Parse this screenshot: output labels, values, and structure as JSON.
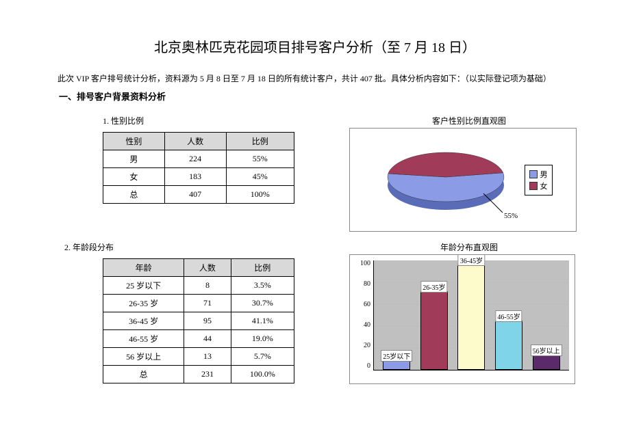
{
  "title": "北京奥林匹克花园项目排号客户分析（至 7 月 18 日）",
  "intro": "此次 VIP 客户排号统计分析，资料源为 5 月 8 日至 7 月 18 日的所有统计客户，共计 407 批。具体分析内容如下：（以实际登记项为基础）",
  "section1_heading": "一、排号客户背景资料分析",
  "gender": {
    "subheading": "1. 性别比例",
    "chart_title": "客户性别比例直观图",
    "columns": [
      "性别",
      "人数",
      "比例"
    ],
    "rows": [
      [
        "男",
        "224",
        "55%"
      ],
      [
        "女",
        "183",
        "45%"
      ],
      [
        "总",
        "407",
        "100%"
      ]
    ],
    "pie": {
      "slices": [
        {
          "label": "男",
          "value": 55,
          "color": "#8c9be6"
        },
        {
          "label": "女",
          "value": 45,
          "color": "#a13b5a"
        }
      ],
      "callout": "55%",
      "background": "#ffffff",
      "side_color": "#5a6bb8"
    }
  },
  "age": {
    "subheading": "2. 年龄段分布",
    "chart_title": "年龄分布直观图",
    "columns": [
      "年龄",
      "人数",
      "比例"
    ],
    "rows": [
      [
        "25 岁以下",
        "8",
        "3.5%"
      ],
      [
        "26-35 岁",
        "71",
        "30.7%"
      ],
      [
        "36-45 岁",
        "95",
        "41.1%"
      ],
      [
        "46-55 岁",
        "44",
        "19.0%"
      ],
      [
        "56 岁以上",
        "13",
        "5.7%"
      ],
      [
        "总",
        "231",
        "100.0%"
      ]
    ],
    "bar": {
      "ylim": [
        0,
        100
      ],
      "ytick_step": 20,
      "yticks": [
        "0",
        "20",
        "40",
        "60",
        "80",
        "100"
      ],
      "plot_bg": "#c0c0c0",
      "grid_color": "#bdbdbd",
      "bars": [
        {
          "label": "25岁以下",
          "value": 8,
          "color": "#8c9be6"
        },
        {
          "label": "26-35岁",
          "value": 71,
          "color": "#a13b5a"
        },
        {
          "label": "36-45岁",
          "value": 95,
          "color": "#fdfacb"
        },
        {
          "label": "46-55岁",
          "value": 44,
          "color": "#7fd4e8"
        },
        {
          "label": "56岁以上",
          "value": 13,
          "color": "#5b2a6b"
        }
      ]
    }
  }
}
